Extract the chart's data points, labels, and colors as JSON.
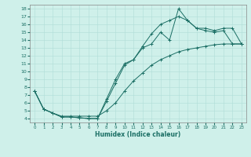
{
  "xlabel": "Humidex (Indice chaleur)",
  "bg_color": "#cff0ea",
  "grid_color": "#b0ddd8",
  "line_color": "#1a6e64",
  "xlim": [
    -0.5,
    23.5
  ],
  "ylim": [
    3.5,
    18.5
  ],
  "yticks": [
    4,
    5,
    6,
    7,
    8,
    9,
    10,
    11,
    12,
    13,
    14,
    15,
    16,
    17,
    18
  ],
  "xticks": [
    0,
    1,
    2,
    3,
    4,
    5,
    6,
    7,
    8,
    9,
    10,
    11,
    12,
    13,
    14,
    15,
    16,
    17,
    18,
    19,
    20,
    21,
    22,
    23
  ],
  "line1_x": [
    0,
    1,
    2,
    3,
    4,
    5,
    6,
    7,
    8,
    9,
    10,
    11,
    12,
    13,
    14,
    15,
    16,
    17,
    18,
    19,
    20,
    21,
    22,
    23
  ],
  "line1_y": [
    7.5,
    5.2,
    4.7,
    4.2,
    4.2,
    4.1,
    4.0,
    4.0,
    6.5,
    9.0,
    11.0,
    11.5,
    13.0,
    13.5,
    15.0,
    14.0,
    18.0,
    16.5,
    15.5,
    15.2,
    15.0,
    15.2,
    13.5,
    13.5
  ],
  "line2_x": [
    0,
    1,
    2,
    3,
    4,
    5,
    6,
    7,
    8,
    9,
    10,
    11,
    12,
    13,
    14,
    15,
    16,
    17,
    18,
    19,
    20,
    21,
    22,
    23
  ],
  "line2_y": [
    7.5,
    5.2,
    4.7,
    4.2,
    4.2,
    4.1,
    4.0,
    4.0,
    6.2,
    8.5,
    10.8,
    11.5,
    13.2,
    14.8,
    16.0,
    16.5,
    17.0,
    16.5,
    15.5,
    15.5,
    15.2,
    15.5,
    15.5,
    13.5
  ],
  "line3_x": [
    0,
    1,
    2,
    3,
    4,
    5,
    6,
    7,
    8,
    9,
    10,
    11,
    12,
    13,
    14,
    15,
    16,
    17,
    18,
    19,
    20,
    21,
    22,
    23
  ],
  "line3_y": [
    7.5,
    5.2,
    4.7,
    4.3,
    4.3,
    4.3,
    4.3,
    4.3,
    5.0,
    6.0,
    7.5,
    8.8,
    9.8,
    10.8,
    11.5,
    12.0,
    12.5,
    12.8,
    13.0,
    13.2,
    13.4,
    13.5,
    13.5,
    13.5
  ]
}
